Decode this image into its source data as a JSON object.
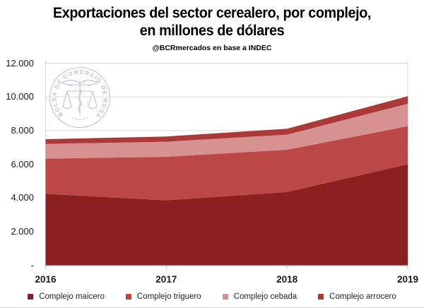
{
  "header": {
    "title_line1": "Exportaciones del sector cerealero, por complejo,",
    "title_line2": "en millones de dólares",
    "subtitle": "@BCRmercados en base a INDEC"
  },
  "watermark": {
    "seal_text": "BOLSA DE COMERCIO DE ROSARIO",
    "color": "#8494AE",
    "emblem": "caduceus-with-scales"
  },
  "chart_data": {
    "type": "area",
    "stacked": true,
    "title": "Exportaciones del sector cerealero, por complejo, en millones de dólares",
    "source_note": "@BCRmercados en base a INDEC",
    "categories": [
      "2016",
      "2017",
      "2018",
      "2019"
    ],
    "series": [
      {
        "name": "Complejo maicero",
        "color": "#8C2020",
        "values": [
          4240,
          3860,
          4350,
          6000
        ]
      },
      {
        "name": "Complejo triguero",
        "color": "#BC4747",
        "values": [
          2090,
          2580,
          2510,
          2260
        ]
      },
      {
        "name": "Complejo cebada",
        "color": "#D79190",
        "values": [
          880,
          900,
          900,
          1330
        ]
      },
      {
        "name": "Complejo arrocero",
        "color": "#AC3939",
        "values": [
          280,
          310,
          350,
          450
        ]
      }
    ],
    "stack_totals": [
      7490,
      7650,
      8110,
      10040
    ],
    "ylim": [
      0,
      12000
    ],
    "y_ticks": [
      {
        "label": "12.000",
        "value": 12000
      },
      {
        "label": "10.000",
        "value": 10000
      },
      {
        "label": "8.000",
        "value": 8000
      },
      {
        "label": "6.000",
        "value": 6000
      },
      {
        "label": "4.000",
        "value": 4000
      },
      {
        "label": "2.000",
        "value": 2000
      },
      {
        "label": "-",
        "value": 0
      }
    ],
    "grid": true,
    "legend_position": "bottom"
  },
  "colors": {
    "grid": "#D9D9D9",
    "axis": "#BFBFBF",
    "axis_text": "#1A1A1A",
    "background": "#FFFFFF"
  }
}
